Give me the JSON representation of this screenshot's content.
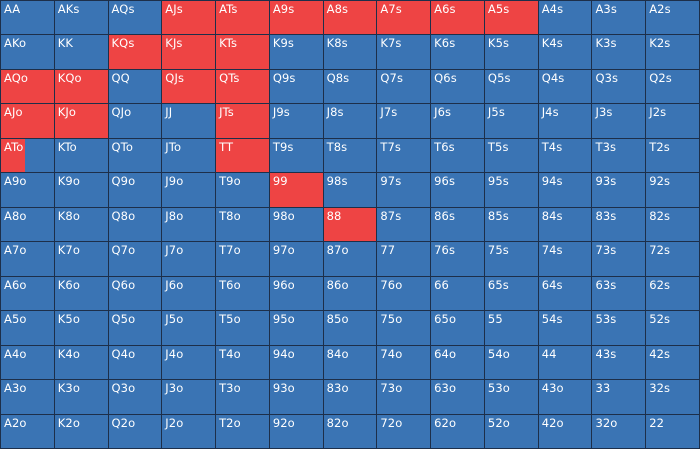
{
  "colors": {
    "base": "#3a74b4",
    "highlight": "#ee4444",
    "border": "#1d2f4a"
  },
  "grid": {
    "rows": [
      [
        "AA",
        "AKs",
        "AQs",
        "AJs",
        "ATs",
        "A9s",
        "A8s",
        "A7s",
        "A6s",
        "A5s",
        "A4s",
        "A3s",
        "A2s"
      ],
      [
        "AKo",
        "KK",
        "KQs",
        "KJs",
        "KTs",
        "K9s",
        "K8s",
        "K7s",
        "K6s",
        "K5s",
        "K4s",
        "K3s",
        "K2s"
      ],
      [
        "AQo",
        "KQo",
        "QQ",
        "QJs",
        "QTs",
        "Q9s",
        "Q8s",
        "Q7s",
        "Q6s",
        "Q5s",
        "Q4s",
        "Q3s",
        "Q2s"
      ],
      [
        "AJo",
        "KJo",
        "QJo",
        "JJ",
        "JTs",
        "J9s",
        "J8s",
        "J7s",
        "J6s",
        "J5s",
        "J4s",
        "J3s",
        "J2s"
      ],
      [
        "ATo",
        "KTo",
        "QTo",
        "JTo",
        "TT",
        "T9s",
        "T8s",
        "T7s",
        "T6s",
        "T5s",
        "T4s",
        "T3s",
        "T2s"
      ],
      [
        "A9o",
        "K9o",
        "Q9o",
        "J9o",
        "T9o",
        "99",
        "98s",
        "97s",
        "96s",
        "95s",
        "94s",
        "93s",
        "92s"
      ],
      [
        "A8o",
        "K8o",
        "Q8o",
        "J8o",
        "T8o",
        "98o",
        "88",
        "87s",
        "86s",
        "85s",
        "84s",
        "83s",
        "82s"
      ],
      [
        "A7o",
        "K7o",
        "Q7o",
        "J7o",
        "T7o",
        "97o",
        "87o",
        "77",
        "76s",
        "75s",
        "74s",
        "73s",
        "72s"
      ],
      [
        "A6o",
        "K6o",
        "Q6o",
        "J6o",
        "T6o",
        "96o",
        "86o",
        "76o",
        "66",
        "65s",
        "64s",
        "63s",
        "62s"
      ],
      [
        "A5o",
        "K5o",
        "Q5o",
        "J5o",
        "T5o",
        "95o",
        "85o",
        "75o",
        "65o",
        "55",
        "54s",
        "53s",
        "52s"
      ],
      [
        "A4o",
        "K4o",
        "Q4o",
        "J4o",
        "T4o",
        "94o",
        "84o",
        "74o",
        "64o",
        "54o",
        "44",
        "43s",
        "42s"
      ],
      [
        "A3o",
        "K3o",
        "Q3o",
        "J3o",
        "T3o",
        "93o",
        "83o",
        "73o",
        "63o",
        "53o",
        "43o",
        "33",
        "32s"
      ],
      [
        "A2o",
        "K2o",
        "Q2o",
        "J2o",
        "T2o",
        "92o",
        "82o",
        "72o",
        "62o",
        "52o",
        "42o",
        "32o",
        "22"
      ]
    ],
    "highlight_fraction": [
      [
        0,
        0,
        0,
        1,
        1,
        1,
        1,
        1,
        1,
        1,
        0,
        0,
        0
      ],
      [
        0,
        0,
        1,
        1,
        1,
        0,
        0,
        0,
        0,
        0,
        0,
        0,
        0
      ],
      [
        1,
        1,
        0,
        1,
        1,
        0,
        0,
        0,
        0,
        0,
        0,
        0,
        0
      ],
      [
        1,
        1,
        0,
        0,
        1,
        0,
        0,
        0,
        0,
        0,
        0,
        0,
        0
      ],
      [
        0.45,
        0,
        0,
        0,
        1,
        0,
        0,
        0,
        0,
        0,
        0,
        0,
        0
      ],
      [
        0,
        0,
        0,
        0,
        0,
        1,
        0,
        0,
        0,
        0,
        0,
        0,
        0
      ],
      [
        0,
        0,
        0,
        0,
        0,
        0,
        1,
        0,
        0,
        0,
        0,
        0,
        0
      ],
      [
        0,
        0,
        0,
        0,
        0,
        0,
        0,
        0,
        0,
        0,
        0,
        0,
        0
      ],
      [
        0,
        0,
        0,
        0,
        0,
        0,
        0,
        0,
        0,
        0,
        0,
        0,
        0
      ],
      [
        0,
        0,
        0,
        0,
        0,
        0,
        0,
        0,
        0,
        0,
        0,
        0,
        0
      ],
      [
        0,
        0,
        0,
        0,
        0,
        0,
        0,
        0,
        0,
        0,
        0,
        0,
        0
      ],
      [
        0,
        0,
        0,
        0,
        0,
        0,
        0,
        0,
        0,
        0,
        0,
        0,
        0
      ],
      [
        0,
        0,
        0,
        0,
        0,
        0,
        0,
        0,
        0,
        0,
        0,
        0,
        0
      ]
    ]
  }
}
